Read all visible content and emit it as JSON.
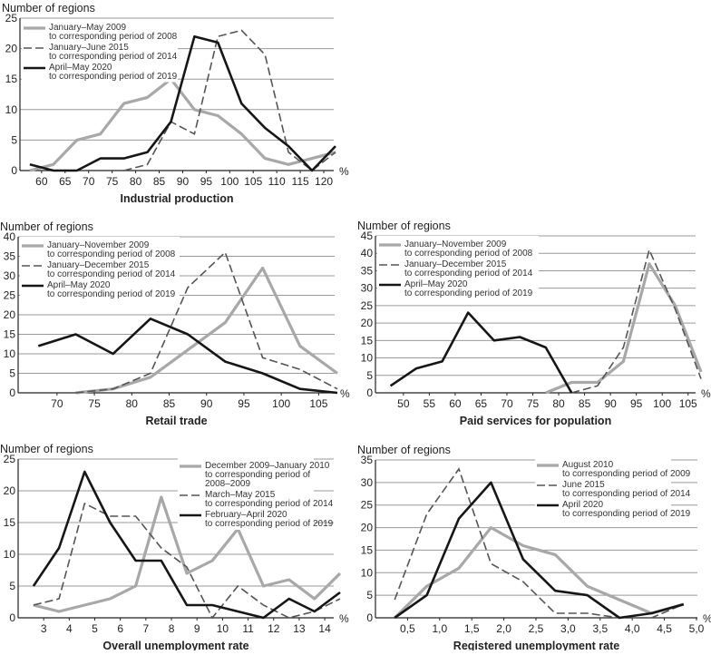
{
  "chart_data": [
    {
      "type": "line",
      "title": "Industrial production",
      "ylabel": "Number of regions",
      "xunit": "%",
      "legend_position": "top-left",
      "xlim": [
        55.4,
        122.5
      ],
      "ylim": [
        0,
        25
      ],
      "grid": true,
      "xticks": [
        60,
        65,
        70,
        75,
        80,
        85,
        90,
        95,
        100,
        105,
        110,
        115,
        120
      ],
      "yticks": [
        0,
        5,
        10,
        15,
        20,
        25
      ],
      "series": [
        {
          "name": "January–May 2009 to corresponding period of 2008",
          "legend": [
            "January–May 2009",
            "to corresponding period of 2008"
          ],
          "style": "gray",
          "x": [
            57.5,
            62.5,
            67.5,
            72.5,
            77.5,
            82.5,
            87.5,
            92.5,
            97.5,
            102.5,
            107.5,
            112.5,
            117.5,
            122.5
          ],
          "y": [
            0,
            1,
            5,
            6,
            11,
            12,
            15,
            10,
            9,
            6,
            2,
            1,
            2,
            3
          ]
        },
        {
          "name": "January–June 2015 to corresponding period of 2014",
          "legend": [
            "January–June 2015",
            "to corresponding period of 2014"
          ],
          "style": "dashed",
          "x": [
            77.5,
            82.5,
            87.5,
            92.5,
            97.5,
            102.5,
            107.5,
            112.5,
            117.5,
            122.5
          ],
          "y": [
            0,
            1,
            8,
            6,
            22,
            23,
            19,
            3,
            0,
            3
          ]
        },
        {
          "name": "April–May 2020 to corresponding period of 2019",
          "legend": [
            "April–May 2020",
            "to corresponding period of 2019"
          ],
          "style": "black",
          "x": [
            57.5,
            62.5,
            67.5,
            72.5,
            77.5,
            82.5,
            87.5,
            92.5,
            97.5,
            102.5,
            107.5,
            112.5,
            117.5,
            122.5
          ],
          "y": [
            1,
            0,
            0,
            2,
            2,
            3,
            8,
            22,
            21,
            11,
            7,
            4,
            0,
            4
          ]
        }
      ]
    },
    {
      "type": "line",
      "title": "Retail trade",
      "ylabel": "Number of regions",
      "xunit": "%",
      "legend_position": "top-left",
      "xlim": [
        64.8,
        107.5
      ],
      "ylim": [
        0,
        40
      ],
      "grid": true,
      "xticks": [
        70,
        75,
        80,
        85,
        90,
        95,
        100,
        105
      ],
      "yticks": [
        0,
        5,
        10,
        15,
        20,
        25,
        30,
        35,
        40
      ],
      "series": [
        {
          "name": "January–November 2009 to corresponding period of 2008",
          "legend": [
            "January–November 2009",
            "to corresponding period of 2008"
          ],
          "style": "gray",
          "x": [
            72.5,
            77.5,
            82.5,
            87.5,
            92.5,
            97.5,
            102.5,
            107.5
          ],
          "y": [
            0,
            1,
            4,
            11,
            18,
            32,
            12,
            5
          ]
        },
        {
          "name": "January–December 2015 to corresponding period of 2014",
          "legend": [
            "January–December 2015",
            "to corresponding period of 2014"
          ],
          "style": "dashed",
          "x": [
            72.5,
            77.5,
            82.5,
            87.5,
            92.5,
            97.5,
            102.5,
            107.5
          ],
          "y": [
            0,
            1,
            5,
            27,
            36,
            9,
            6,
            1
          ]
        },
        {
          "name": "April–May 2020 to corresponding period of 2019",
          "legend": [
            "April–May 2020",
            "to corresponding period of 2019"
          ],
          "style": "black",
          "x": [
            67.5,
            72.5,
            77.5,
            82.5,
            87.5,
            92.5,
            97.5,
            102.5,
            107.5
          ],
          "y": [
            12,
            15,
            10,
            19,
            15,
            8,
            5,
            1,
            0
          ]
        }
      ]
    },
    {
      "type": "line",
      "title": "Paid services for population",
      "ylabel": "Number of regions",
      "xunit": "%",
      "legend_position": "top-left",
      "xlim": [
        44.6,
        107.5
      ],
      "ylim": [
        0,
        45
      ],
      "grid": true,
      "xticks": [
        50,
        55,
        60,
        65,
        70,
        75,
        80,
        85,
        90,
        95,
        100,
        105
      ],
      "yticks": [
        0,
        5,
        10,
        15,
        20,
        25,
        30,
        35,
        40,
        45
      ],
      "series": [
        {
          "name": "January–November 2009 to corresponding period of 2008",
          "legend": [
            "January–November 2009",
            "to corresponding period of 2008"
          ],
          "style": "gray",
          "x": [
            77.5,
            82.5,
            87.5,
            92.5,
            97.5,
            102.5,
            107.5
          ],
          "y": [
            0,
            3,
            3,
            9,
            37,
            25,
            6
          ]
        },
        {
          "name": "January–December 2015 to corresponding period of 2014",
          "legend": [
            "January–December 2015",
            "to corresponding period of 2014"
          ],
          "style": "dashed",
          "x": [
            82.5,
            87.5,
            92.5,
            97.5,
            102.5,
            107.5
          ],
          "y": [
            0,
            2,
            13,
            41,
            24,
            4
          ]
        },
        {
          "name": "April–May 2020 to corresponding period of 2019",
          "legend": [
            "April–May 2020",
            "to corresponding period of 2019"
          ],
          "style": "black",
          "x": [
            47.5,
            52.5,
            57.5,
            62.5,
            67.5,
            72.5,
            77.5,
            82.5
          ],
          "y": [
            2,
            7,
            9,
            23,
            15,
            16,
            13,
            0
          ]
        }
      ]
    },
    {
      "type": "line",
      "title": "Overall unemployment rate",
      "ylabel": "Number of regions",
      "xunit": "%",
      "legend_position": "top-right",
      "xlim": [
        2.0,
        14.6
      ],
      "ylim": [
        0,
        25
      ],
      "grid": true,
      "xticks": [
        3,
        4,
        5,
        6,
        7,
        8,
        9,
        10,
        11,
        12,
        13,
        14
      ],
      "yticks": [
        0,
        5,
        10,
        15,
        20,
        25
      ],
      "series": [
        {
          "name": "December 2009–January 2010 to corresponding period of 2008–2009",
          "legend": [
            "December 2009–January 2010",
            "to corresponding period of",
            "2008–2009"
          ],
          "style": "gray",
          "x": [
            2.6,
            3.6,
            4.6,
            5.6,
            6.6,
            7.6,
            8.6,
            9.6,
            10.6,
            11.6,
            12.6,
            13.6,
            14.6
          ],
          "y": [
            2,
            1,
            2,
            3,
            5,
            19,
            7,
            9,
            14,
            5,
            6,
            3,
            7
          ]
        },
        {
          "name": "March–May 2015 to corresponding period of 2014",
          "legend": [
            "March–May 2015",
            "to corresponding period of 2014"
          ],
          "style": "dashed",
          "x": [
            2.6,
            3.6,
            4.6,
            5.6,
            6.6,
            7.6,
            8.6,
            9.6,
            10.6,
            11.6,
            12.6,
            13.6,
            14.6
          ],
          "y": [
            2,
            3,
            18,
            16,
            16,
            11,
            8,
            0,
            5,
            2,
            0,
            1,
            3
          ]
        },
        {
          "name": "February–April 2020 to corresponding period of 2019",
          "legend": [
            "February–April 2020",
            "to corresponding period of 2019"
          ],
          "style": "black",
          "x": [
            2.6,
            3.6,
            4.6,
            5.6,
            6.6,
            7.6,
            8.6,
            9.6,
            10.6,
            11.6,
            12.6,
            13.6,
            14.6
          ],
          "y": [
            5,
            11,
            23,
            15,
            9,
            9,
            2,
            2,
            1,
            0,
            3,
            1,
            4
          ]
        }
      ]
    },
    {
      "type": "line",
      "title": "Registered unemployment rate",
      "ylabel": "Number of regions",
      "xunit": "%",
      "legend_position": "top-right",
      "xlim": [
        0,
        5.0
      ],
      "ylim": [
        0,
        35
      ],
      "grid": true,
      "xticks": [
        "0,5",
        "1,0",
        "1,5",
        "2,0",
        "2,5",
        "3,0",
        "3,5",
        "4,0",
        "4,5",
        "5,0"
      ],
      "xtick_values": [
        0.5,
        1.0,
        1.5,
        2.0,
        2.5,
        3.0,
        3.5,
        4.0,
        4.5,
        5.0
      ],
      "yticks": [
        0,
        5,
        10,
        15,
        20,
        25,
        30,
        35
      ],
      "series": [
        {
          "name": "August 2010 to corresponding period of 2009",
          "legend": [
            "August 2010",
            "to corresponding period of 2009"
          ],
          "style": "gray",
          "x": [
            0.3,
            0.8,
            1.3,
            1.8,
            2.3,
            2.8,
            3.3,
            3.8,
            4.3,
            4.8
          ],
          "y": [
            0,
            7,
            11,
            20,
            16,
            14,
            7,
            4,
            1,
            3
          ]
        },
        {
          "name": "June 2015 to corresponding period of 2014",
          "legend": [
            "June 2015",
            "to corresponding period of 2014"
          ],
          "style": "dashed",
          "x": [
            0.3,
            0.8,
            1.3,
            1.8,
            2.3,
            2.8,
            3.3,
            3.8,
            4.3,
            4.8
          ],
          "y": [
            4,
            23,
            33,
            12,
            8,
            1,
            1,
            0,
            0,
            3
          ]
        },
        {
          "name": "April 2020 to corresponding period of 2019",
          "legend": [
            "April 2020",
            "to corresponding period of 2019"
          ],
          "style": "black",
          "x": [
            0.3,
            0.8,
            1.3,
            1.8,
            2.3,
            2.8,
            3.3,
            3.8,
            4.3,
            4.8
          ],
          "y": [
            0,
            5,
            22,
            30,
            13,
            6,
            5,
            0,
            1,
            3
          ]
        }
      ]
    }
  ],
  "colors": {
    "gray": "#a8a8a8",
    "dashed": "#555555",
    "black": "#161616",
    "grid": "#9a9a9a",
    "axis": "#222222"
  }
}
